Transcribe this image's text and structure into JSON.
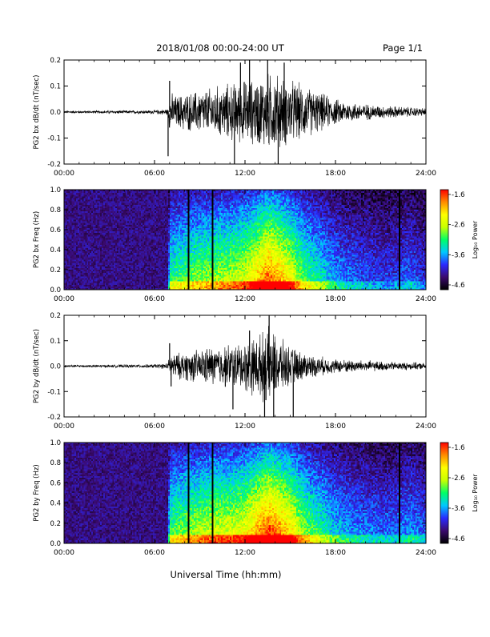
{
  "header": {
    "title": "2018/01/08  00:00-24:00 UT",
    "page_label": "Page 1/1"
  },
  "x_label": "Universal Time (hh:mm)",
  "time_ticks": [
    "00:00",
    "06:00",
    "12:00",
    "18:00",
    "24:00"
  ],
  "colors": {
    "trace": "#000000",
    "axis": "#000000",
    "spectrogram_background": "#2a0a4f",
    "colorbar_stops": [
      "#000000",
      "#3b0a6e",
      "#2a2aff",
      "#00c8ff",
      "#00ff66",
      "#c8ff00",
      "#ffff00",
      "#ff8c00",
      "#ff0000"
    ]
  },
  "chart_data": [
    {
      "type": "line",
      "ylabel": "PG2 bx dB/dt (nT/sec)",
      "xlabel": "",
      "xlim": [
        0,
        24
      ],
      "ylim": [
        -0.2,
        0.2
      ],
      "yticks": [
        "0.2",
        "0.1",
        "0.0",
        "-0.1",
        "-0.2"
      ],
      "grid": false,
      "envelope": {
        "hours": [
          0,
          1,
          2,
          3,
          4,
          5,
          6,
          6.5,
          6.9,
          7,
          7.5,
          8,
          8.5,
          9,
          9.5,
          10,
          10.5,
          11,
          11.5,
          12,
          12.5,
          13,
          13.5,
          14,
          14.5,
          15,
          15.5,
          16,
          16.5,
          17,
          17.5,
          18,
          19,
          20,
          21,
          22,
          23,
          24
        ],
        "amplitude": [
          0.004,
          0.004,
          0.004,
          0.005,
          0.005,
          0.005,
          0.006,
          0.008,
          0.01,
          0.06,
          0.05,
          0.06,
          0.06,
          0.07,
          0.07,
          0.08,
          0.08,
          0.09,
          0.09,
          0.1,
          0.1,
          0.11,
          0.12,
          0.12,
          0.11,
          0.1,
          0.09,
          0.08,
          0.07,
          0.06,
          0.05,
          0.04,
          0.03,
          0.025,
          0.02,
          0.018,
          0.015,
          0.012
        ]
      },
      "spikes": [
        {
          "hour": 6.9,
          "value": -0.17
        },
        {
          "hour": 7.0,
          "value": 0.12
        },
        {
          "hour": 11.3,
          "value": -0.21
        },
        {
          "hour": 11.7,
          "value": 0.19
        },
        {
          "hour": 12.3,
          "value": 0.2
        },
        {
          "hour": 13.5,
          "value": 0.2
        },
        {
          "hour": 14.2,
          "value": -0.2
        },
        {
          "hour": 14.6,
          "value": 0.19
        }
      ]
    },
    {
      "type": "heatmap",
      "ylabel": "PG2 bx Freq (Hz)",
      "xlabel": "",
      "xlim": [
        0,
        24
      ],
      "ylim": [
        0,
        1.0
      ],
      "yticks": [
        "1.0",
        "0.8",
        "0.6",
        "0.4",
        "0.2",
        "0.0"
      ],
      "colorbar_label": "Log₁₀ Power",
      "colorbar_range": [
        -4.6,
        -1.6
      ],
      "colorbar_ticks": [
        "-1.6",
        "-2.6",
        "-3.6",
        "-4.6"
      ],
      "dark_bands_hours": [
        8.2,
        9.8,
        22.2
      ],
      "activity_envelope": {
        "hours": [
          0,
          2,
          4,
          6,
          6.9,
          7,
          8,
          9,
          10,
          11,
          12,
          13,
          13.5,
          14,
          15,
          16,
          17,
          18,
          19,
          20,
          21,
          22,
          23,
          24
        ],
        "level": [
          0.1,
          0.1,
          0.1,
          0.12,
          0.15,
          0.5,
          0.55,
          0.6,
          0.62,
          0.65,
          0.7,
          0.85,
          0.95,
          0.9,
          0.75,
          0.55,
          0.45,
          0.35,
          0.3,
          0.28,
          0.25,
          0.25,
          0.3,
          0.22
        ]
      }
    },
    {
      "type": "line",
      "ylabel": "PG2 by dB/dt (nT/sec)",
      "xlabel": "",
      "xlim": [
        0,
        24
      ],
      "ylim": [
        -0.2,
        0.2
      ],
      "yticks": [
        "0.2",
        "0.1",
        "0.0",
        "-0.1",
        "-0.2"
      ],
      "grid": false,
      "envelope": {
        "hours": [
          0,
          1,
          2,
          3,
          4,
          5,
          6,
          6.5,
          6.9,
          7,
          7.5,
          8,
          8.5,
          9,
          9.5,
          10,
          10.5,
          11,
          11.5,
          12,
          12.5,
          13,
          13.5,
          14,
          14.5,
          15,
          15.5,
          16,
          16.5,
          17,
          17.5,
          18,
          19,
          20,
          21,
          22,
          23,
          24
        ],
        "amplitude": [
          0.004,
          0.004,
          0.004,
          0.004,
          0.005,
          0.005,
          0.006,
          0.008,
          0.01,
          0.04,
          0.04,
          0.045,
          0.05,
          0.05,
          0.06,
          0.06,
          0.065,
          0.07,
          0.07,
          0.08,
          0.09,
          0.1,
          0.12,
          0.1,
          0.08,
          0.06,
          0.05,
          0.04,
          0.035,
          0.03,
          0.025,
          0.022,
          0.02,
          0.018,
          0.015,
          0.013,
          0.012,
          0.01
        ]
      },
      "spikes": [
        {
          "hour": 7.0,
          "value": 0.09
        },
        {
          "hour": 7.1,
          "value": -0.08
        },
        {
          "hour": 11.2,
          "value": -0.17
        },
        {
          "hour": 12.3,
          "value": 0.14
        },
        {
          "hour": 13.3,
          "value": -0.2
        },
        {
          "hour": 13.6,
          "value": 0.2
        },
        {
          "hour": 13.9,
          "value": -0.21
        },
        {
          "hour": 15.2,
          "value": -0.2
        }
      ]
    },
    {
      "type": "heatmap",
      "ylabel": "PG2 by Freq (Hz)",
      "xlabel": "",
      "xlim": [
        0,
        24
      ],
      "ylim": [
        0,
        1.0
      ],
      "yticks": [
        "1.0",
        "0.8",
        "0.6",
        "0.4",
        "0.2",
        "0.0"
      ],
      "colorbar_label": "Log₁₀ Power",
      "colorbar_range": [
        -4.6,
        -1.6
      ],
      "colorbar_ticks": [
        "-1.6",
        "-2.6",
        "-3.6",
        "-4.6"
      ],
      "dark_bands_hours": [
        8.2,
        9.8,
        22.2
      ],
      "activity_envelope": {
        "hours": [
          0,
          2,
          4,
          6,
          6.9,
          7,
          8,
          9,
          10,
          11,
          12,
          13,
          13.5,
          14,
          15,
          16,
          17,
          18,
          19,
          20,
          21,
          22,
          23,
          24
        ],
        "level": [
          0.12,
          0.12,
          0.12,
          0.15,
          0.2,
          0.55,
          0.6,
          0.65,
          0.7,
          0.7,
          0.75,
          0.9,
          1.0,
          0.95,
          0.8,
          0.6,
          0.5,
          0.4,
          0.35,
          0.32,
          0.3,
          0.3,
          0.35,
          0.28
        ]
      }
    }
  ]
}
